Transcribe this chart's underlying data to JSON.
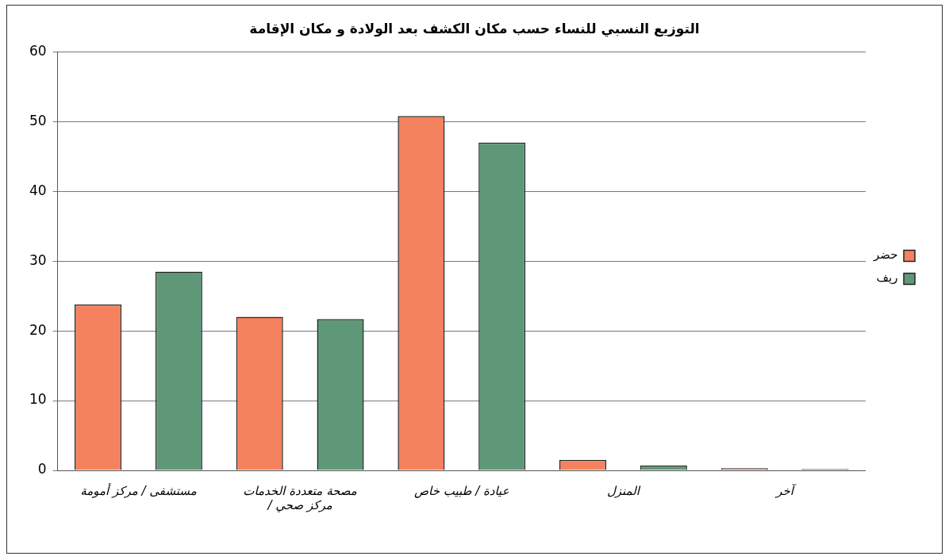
{
  "chart_data": {
    "type": "bar",
    "title": "التوزيع النسبي للنساء حسب مكان الكشف بعد الولادة و مكان الإقامة",
    "categories": [
      "مستشفى / مركز أمومة",
      "مصحة متعددة الخدمات / مركز صحي",
      "عيادة / طبيب خاص",
      "المنزل",
      "آخر"
    ],
    "series": [
      {
        "name": "حضر",
        "color": "#f4825e",
        "values": [
          23.8,
          22,
          50.8,
          1.5,
          0.3
        ]
      },
      {
        "name": "ريف",
        "color": "#5f9878",
        "values": [
          28.5,
          21.7,
          47,
          0.7,
          0.2
        ]
      }
    ],
    "ylim": [
      0,
      60
    ],
    "yticks": [
      0,
      10,
      20,
      30,
      40,
      50,
      60
    ],
    "grid": "y",
    "legend": "right"
  }
}
